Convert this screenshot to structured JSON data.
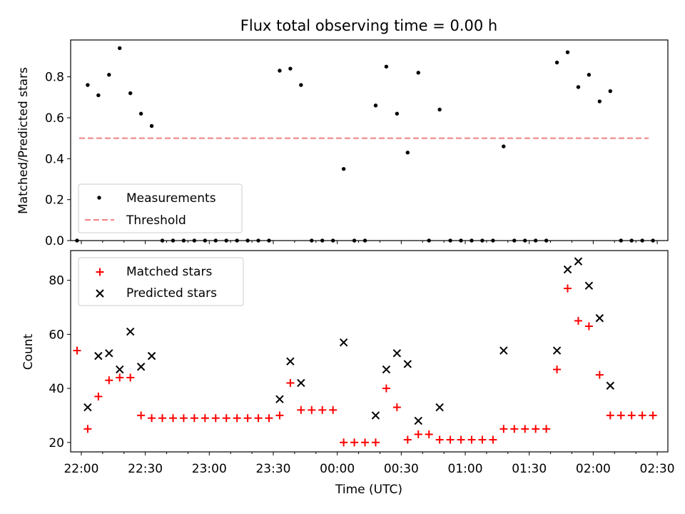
{
  "figure": {
    "title": "Flux total observing time = 0.00 h"
  },
  "chart_data": [
    {
      "type": "scatter",
      "ylabel": "Matched/Predicted stars",
      "xlabel": "",
      "ylim": [
        0,
        0.98
      ],
      "xlim": [
        "21:55",
        "02:35"
      ],
      "yticks": [
        "0.0",
        "0.2",
        "0.4",
        "0.6",
        "0.8"
      ],
      "legend_position": "lower-left",
      "legend": [
        "Measurements",
        "Threshold"
      ],
      "colors": {
        "Measurements": "#000000",
        "Threshold": "#f08080"
      },
      "threshold": 0.5,
      "threshold_x": [
        "21:59",
        "02:26"
      ],
      "series": [
        {
          "name": "Measurements",
          "points": [
            [
              "21:58",
              0
            ],
            [
              "22:03",
              0.76
            ],
            [
              "22:08",
              0.71
            ],
            [
              "22:13",
              0.81
            ],
            [
              "22:18",
              0.94
            ],
            [
              "22:23",
              0.72
            ],
            [
              "22:28",
              0.62
            ],
            [
              "22:33",
              0.56
            ],
            [
              "22:38",
              0
            ],
            [
              "22:43",
              0
            ],
            [
              "22:48",
              0
            ],
            [
              "22:53",
              0
            ],
            [
              "22:58",
              0
            ],
            [
              "23:03",
              0
            ],
            [
              "23:08",
              0
            ],
            [
              "23:13",
              0
            ],
            [
              "23:18",
              0
            ],
            [
              "23:23",
              0
            ],
            [
              "23:28",
              0
            ],
            [
              "23:33",
              0.83
            ],
            [
              "23:38",
              0.84
            ],
            [
              "23:43",
              0.76
            ],
            [
              "23:48",
              0
            ],
            [
              "23:53",
              0
            ],
            [
              "23:58",
              0
            ],
            [
              "00:03",
              0.35
            ],
            [
              "00:08",
              0
            ],
            [
              "00:13",
              0
            ],
            [
              "00:18",
              0.66
            ],
            [
              "00:23",
              0.85
            ],
            [
              "00:28",
              0.62
            ],
            [
              "00:33",
              0.43
            ],
            [
              "00:38",
              0.82
            ],
            [
              "00:43",
              0
            ],
            [
              "00:48",
              0.64
            ],
            [
              "00:53",
              0
            ],
            [
              "00:58",
              0
            ],
            [
              "01:03",
              0
            ],
            [
              "01:08",
              0
            ],
            [
              "01:13",
              0
            ],
            [
              "01:18",
              0.46
            ],
            [
              "01:23",
              0
            ],
            [
              "01:28",
              0
            ],
            [
              "01:33",
              0
            ],
            [
              "01:38",
              0
            ],
            [
              "01:43",
              0.87
            ],
            [
              "01:48",
              0.92
            ],
            [
              "01:53",
              0.75
            ],
            [
              "01:58",
              0.81
            ],
            [
              "02:03",
              0.68
            ],
            [
              "02:08",
              0.73
            ],
            [
              "02:13",
              0
            ],
            [
              "02:18",
              0
            ],
            [
              "02:23",
              0
            ],
            [
              "02:28",
              0
            ]
          ]
        }
      ]
    },
    {
      "type": "scatter",
      "ylabel": "Count",
      "xlabel": "Time (UTC)",
      "ylim": [
        16.5,
        91
      ],
      "xlim": [
        "21:55",
        "02:35"
      ],
      "yticks": [
        "20",
        "40",
        "60",
        "80"
      ],
      "xticks": [
        "22:00",
        "22:30",
        "23:00",
        "23:30",
        "00:00",
        "00:30",
        "01:00",
        "01:30",
        "02:00",
        "02:30"
      ],
      "legend_position": "upper-left",
      "legend": [
        "Matched stars",
        "Predicted stars"
      ],
      "colors": {
        "Matched stars": "#ff0000",
        "Predicted stars": "#000000"
      },
      "series": [
        {
          "name": "Matched stars",
          "points": [
            [
              "21:58",
              54
            ],
            [
              "22:03",
              25
            ],
            [
              "22:08",
              37
            ],
            [
              "22:13",
              43
            ],
            [
              "22:18",
              44
            ],
            [
              "22:23",
              44
            ],
            [
              "22:28",
              30
            ],
            [
              "22:33",
              29
            ],
            [
              "22:38",
              29
            ],
            [
              "22:43",
              29
            ],
            [
              "22:48",
              29
            ],
            [
              "22:53",
              29
            ],
            [
              "22:58",
              29
            ],
            [
              "23:03",
              29
            ],
            [
              "23:08",
              29
            ],
            [
              "23:13",
              29
            ],
            [
              "23:18",
              29
            ],
            [
              "23:23",
              29
            ],
            [
              "23:28",
              29
            ],
            [
              "23:33",
              30
            ],
            [
              "23:38",
              42
            ],
            [
              "23:43",
              32
            ],
            [
              "23:48",
              32
            ],
            [
              "23:53",
              32
            ],
            [
              "23:58",
              32
            ],
            [
              "00:03",
              20
            ],
            [
              "00:08",
              20
            ],
            [
              "00:13",
              20
            ],
            [
              "00:18",
              20
            ],
            [
              "00:23",
              40
            ],
            [
              "00:28",
              33
            ],
            [
              "00:33",
              21
            ],
            [
              "00:38",
              23
            ],
            [
              "00:43",
              23
            ],
            [
              "00:48",
              21
            ],
            [
              "00:53",
              21
            ],
            [
              "00:58",
              21
            ],
            [
              "01:03",
              21
            ],
            [
              "01:08",
              21
            ],
            [
              "01:13",
              21
            ],
            [
              "01:18",
              25
            ],
            [
              "01:23",
              25
            ],
            [
              "01:28",
              25
            ],
            [
              "01:33",
              25
            ],
            [
              "01:38",
              25
            ],
            [
              "01:43",
              47
            ],
            [
              "01:48",
              77
            ],
            [
              "01:53",
              65
            ],
            [
              "01:58",
              63
            ],
            [
              "02:03",
              45
            ],
            [
              "02:08",
              30
            ],
            [
              "02:13",
              30
            ],
            [
              "02:18",
              30
            ],
            [
              "02:23",
              30
            ],
            [
              "02:28",
              30
            ]
          ]
        },
        {
          "name": "Predicted stars",
          "points": [
            [
              "22:03",
              33
            ],
            [
              "22:08",
              52
            ],
            [
              "22:13",
              53
            ],
            [
              "22:18",
              47
            ],
            [
              "22:23",
              61
            ],
            [
              "22:28",
              48
            ],
            [
              "22:33",
              52
            ],
            [
              "23:33",
              36
            ],
            [
              "23:38",
              50
            ],
            [
              "23:43",
              42
            ],
            [
              "00:03",
              57
            ],
            [
              "00:18",
              30
            ],
            [
              "00:23",
              47
            ],
            [
              "00:28",
              53
            ],
            [
              "00:33",
              49
            ],
            [
              "00:38",
              28
            ],
            [
              "00:48",
              33
            ],
            [
              "01:18",
              54
            ],
            [
              "01:43",
              54
            ],
            [
              "01:48",
              84
            ],
            [
              "01:53",
              87
            ],
            [
              "01:58",
              78
            ],
            [
              "02:03",
              66
            ],
            [
              "02:08",
              41
            ]
          ]
        }
      ]
    }
  ]
}
